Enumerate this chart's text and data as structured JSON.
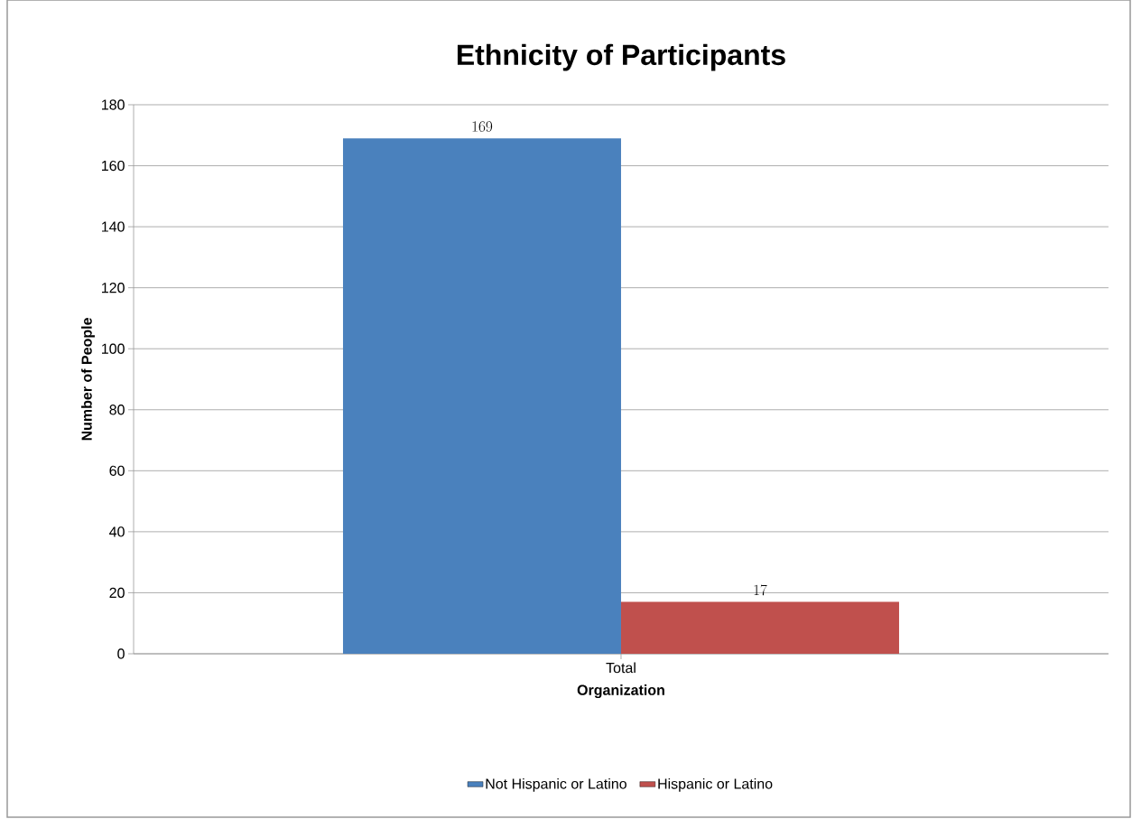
{
  "chart_data": {
    "type": "bar",
    "title": "Ethnicity of Participants",
    "xlabel": "Organization",
    "ylabel": "Number of People",
    "categories": [
      "Total"
    ],
    "series": [
      {
        "name": "Not Hispanic or Latino",
        "color": "#4a81bd",
        "values": [
          169
        ]
      },
      {
        "name": "Hispanic or Latino",
        "color": "#c0504d",
        "values": [
          17
        ]
      }
    ],
    "ylim": [
      0,
      180
    ],
    "yticks": [
      0,
      20,
      40,
      60,
      80,
      100,
      120,
      140,
      160,
      180
    ],
    "grid": "y",
    "legend": "bottom",
    "data_labels": true
  }
}
